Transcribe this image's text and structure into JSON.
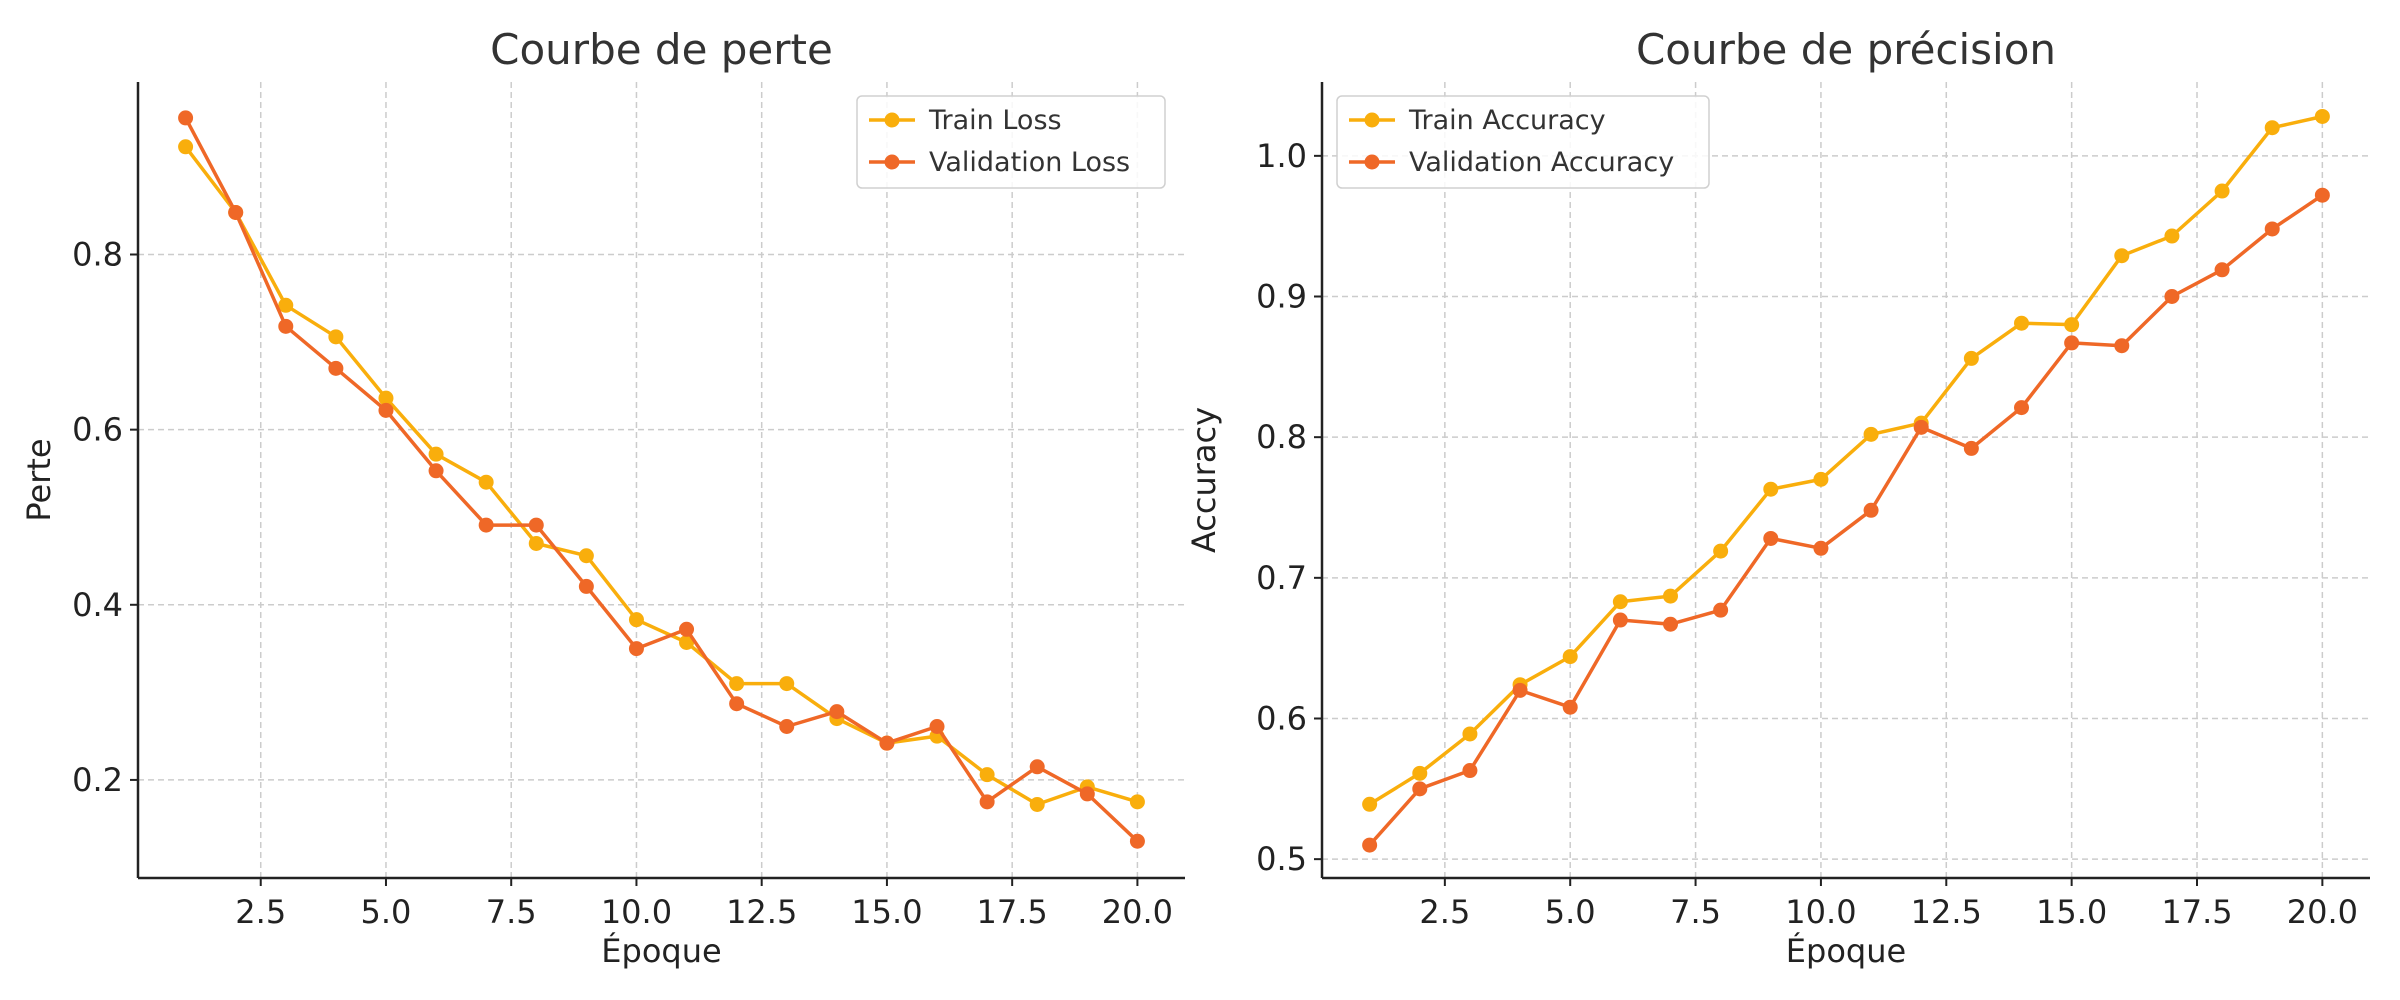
{
  "chart_data": [
    {
      "type": "line",
      "title": "Courbe de perte",
      "xlabel": "Époque",
      "ylabel": "Perte",
      "x": [
        1,
        2,
        3,
        4,
        5,
        6,
        7,
        8,
        9,
        10,
        11,
        12,
        13,
        14,
        15,
        16,
        17,
        18,
        19,
        20
      ],
      "xlim": [
        0.05,
        20.95
      ],
      "ylim": [
        0.088,
        0.997
      ],
      "xticks": [
        2.5,
        5.0,
        7.5,
        10.0,
        12.5,
        15.0,
        17.5,
        20.0
      ],
      "xtick_labels": [
        "2.5",
        "5.0",
        "7.5",
        "10.0",
        "12.5",
        "15.0",
        "17.5",
        "20.0"
      ],
      "yticks": [
        0.2,
        0.4,
        0.6,
        0.8
      ],
      "ytick_labels": [
        "0.2",
        "0.4",
        "0.6",
        "0.8"
      ],
      "grid": true,
      "legend_position": "top-right",
      "series": [
        {
          "name": "Train Loss",
          "color": "#F9AE0C",
          "values": [
            0.923,
            0.848,
            0.742,
            0.706,
            0.636,
            0.572,
            0.54,
            0.47,
            0.456,
            0.383,
            0.357,
            0.31,
            0.31,
            0.27,
            0.242,
            0.25,
            0.206,
            0.172,
            0.192,
            0.175
          ]
        },
        {
          "name": "Validation Loss",
          "color": "#EF6827",
          "values": [
            0.956,
            0.848,
            0.718,
            0.67,
            0.622,
            0.553,
            0.491,
            0.491,
            0.421,
            0.35,
            0.372,
            0.287,
            0.261,
            0.278,
            0.242,
            0.261,
            0.175,
            0.215,
            0.184,
            0.13
          ]
        }
      ]
    },
    {
      "type": "line",
      "title": "Courbe de précision",
      "xlabel": "Époque",
      "ylabel": "Accuracy",
      "x": [
        1,
        2,
        3,
        4,
        5,
        6,
        7,
        8,
        9,
        10,
        11,
        12,
        13,
        14,
        15,
        16,
        17,
        18,
        19,
        20
      ],
      "xlim": [
        0.05,
        20.95
      ],
      "ylim": [
        0.4866,
        1.0525
      ],
      "xticks": [
        2.5,
        5.0,
        7.5,
        10.0,
        12.5,
        15.0,
        17.5,
        20.0
      ],
      "xtick_labels": [
        "2.5",
        "5.0",
        "7.5",
        "10.0",
        "12.5",
        "15.0",
        "17.5",
        "20.0"
      ],
      "yticks": [
        0.5,
        0.6,
        0.7,
        0.8,
        0.9,
        1.0
      ],
      "ytick_labels": [
        "0.5",
        "0.6",
        "0.7",
        "0.8",
        "0.9",
        "1.0"
      ],
      "grid": true,
      "legend_position": "top-left",
      "series": [
        {
          "name": "Train Accuracy",
          "color": "#F9AE0C",
          "values": [
            0.539,
            0.561,
            0.589,
            0.624,
            0.644,
            0.683,
            0.687,
            0.719,
            0.763,
            0.77,
            0.802,
            0.81,
            0.856,
            0.881,
            0.88,
            0.929,
            0.943,
            0.975,
            1.02,
            1.028
          ]
        },
        {
          "name": "Validation Accuracy",
          "color": "#EF6827",
          "values": [
            0.51,
            0.55,
            0.563,
            0.62,
            0.608,
            0.67,
            0.667,
            0.677,
            0.728,
            0.721,
            0.748,
            0.807,
            0.792,
            0.821,
            0.867,
            0.865,
            0.9,
            0.919,
            0.948,
            0.972
          ]
        }
      ]
    }
  ]
}
